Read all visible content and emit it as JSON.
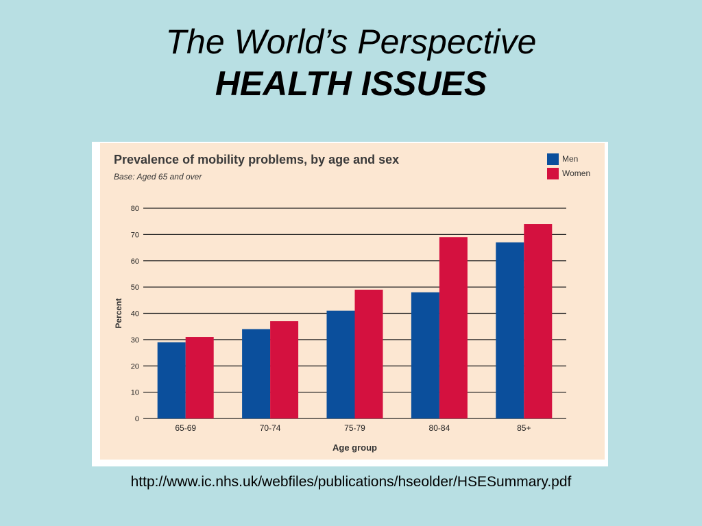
{
  "slide": {
    "title_line1": "The World’s Perspective",
    "title_line2": "HEALTH ISSUES",
    "source_url": "http://www.ic.nhs.uk/webfiles/publications/hseolder/HSESummary.pdf"
  },
  "colors": {
    "background": "#b8dfe3",
    "panel": "#fce7d2",
    "men": "#0b4f9c",
    "women": "#d4113f"
  },
  "chart_data": {
    "type": "bar",
    "title": "Prevalence of mobility problems, by age and sex",
    "subtitle": "Base: Aged 65 and over",
    "xlabel": "Age group",
    "ylabel": "Percent",
    "categories": [
      "65-69",
      "70-74",
      "75-79",
      "80-84",
      "85+"
    ],
    "series": [
      {
        "name": "Men",
        "values": [
          29,
          34,
          41,
          48,
          67
        ]
      },
      {
        "name": "Women",
        "values": [
          31,
          37,
          49,
          69,
          74
        ]
      }
    ],
    "ylim": [
      0,
      80
    ],
    "yticks": [
      0,
      10,
      20,
      30,
      40,
      50,
      60,
      70,
      80
    ],
    "grid": true,
    "legend": "top-right"
  }
}
